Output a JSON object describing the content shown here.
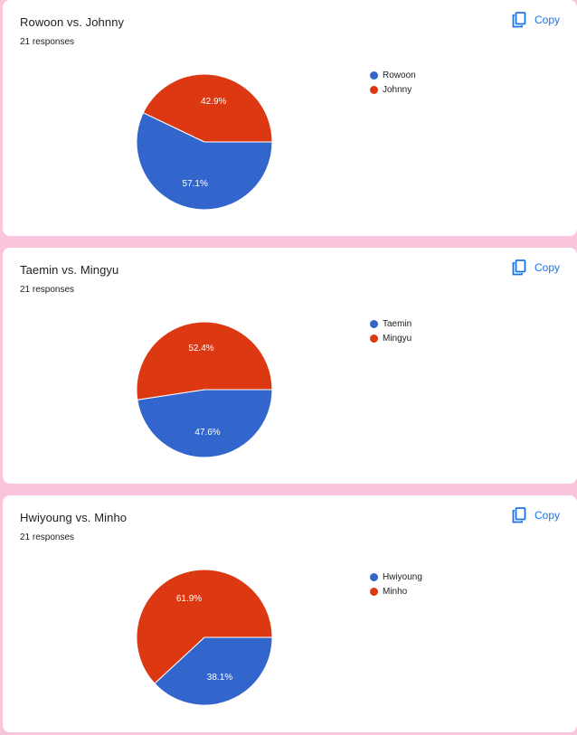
{
  "colors": {
    "series_a": "#3366cc",
    "series_b": "#dc3912",
    "accent": "#1a73e8"
  },
  "copy_label": "Copy",
  "copy_icon": "copy-icon",
  "chart_data": [
    {
      "type": "pie",
      "title": "Rowoon vs. Johnny",
      "subtitle": "21 responses",
      "legend_position": "right",
      "slices": [
        {
          "label": "Rowoon",
          "value": 57.1,
          "display": "57.1%"
        },
        {
          "label": "Johnny",
          "value": 42.9,
          "display": "42.9%"
        }
      ]
    },
    {
      "type": "pie",
      "title": "Taemin vs. Mingyu",
      "subtitle": "21 responses",
      "legend_position": "right",
      "slices": [
        {
          "label": "Taemin",
          "value": 47.6,
          "display": "47.6%"
        },
        {
          "label": "Mingyu",
          "value": 52.4,
          "display": "52.4%"
        }
      ]
    },
    {
      "type": "pie",
      "title": "Hwiyoung vs. Minho",
      "subtitle": "21 responses",
      "legend_position": "right",
      "slices": [
        {
          "label": "Hwiyoung",
          "value": 38.1,
          "display": "38.1%"
        },
        {
          "label": "Minho",
          "value": 61.9,
          "display": "61.9%"
        }
      ]
    }
  ]
}
